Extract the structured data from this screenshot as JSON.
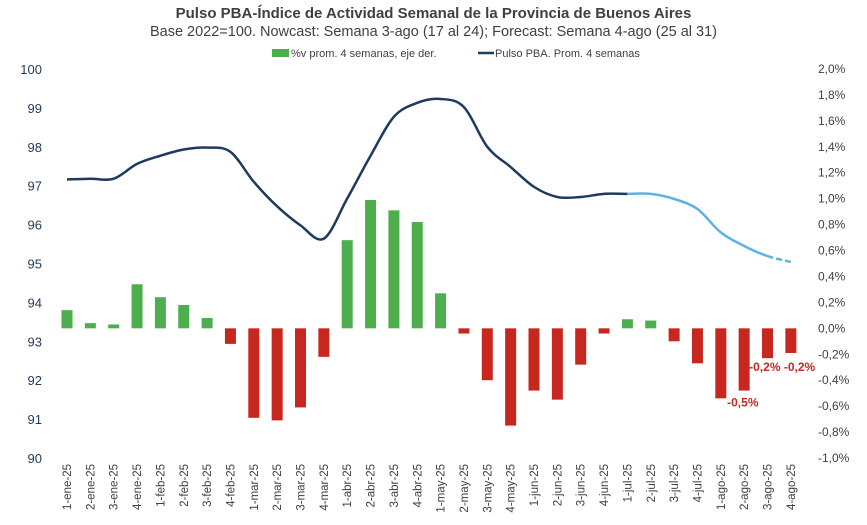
{
  "chart_data": {
    "type": "bar+line",
    "title": "Pulso PBA-Índice de Actividad Semanal de la Provincia de Buenos Aires",
    "subtitle": "Base 2022=100. Nowcast: Semana 3-ago (17 al 24); Forecast: Semana 4-ago (25 al 31)",
    "categories": [
      "1-ene-25",
      "2-ene-25",
      "3-ene-25",
      "4-ene-25",
      "1-feb-25",
      "2-feb-25",
      "3-feb-25",
      "4-feb-25",
      "1-mar-25",
      "2-mar-25",
      "3-mar-25",
      "4-mar-25",
      "1-abr-25",
      "2-abr-25",
      "3-abr-25",
      "4-abr-25",
      "1-may-25",
      "2-may-25",
      "3-may-25",
      "4-may-25",
      "1-jun-25",
      "2-jun-25",
      "3-jun-25",
      "4-jun-25",
      "1-jul-25",
      "2-jul-25",
      "3-jul-25",
      "4-jul-25",
      "1-ago-25",
      "2-ago-25",
      "3-ago-25",
      "4-ago-25"
    ],
    "left_axis": {
      "ylim": [
        90,
        100
      ],
      "ticks": [
        "90",
        "91",
        "92",
        "93",
        "94",
        "95",
        "96",
        "97",
        "98",
        "99",
        "100"
      ]
    },
    "right_axis": {
      "ylim": [
        -1.0,
        2.0
      ],
      "ticks": [
        "-1,0%",
        "-0,8%",
        "-0,6%",
        "-0,4%",
        "-0,2%",
        "0,0%",
        "0,2%",
        "0,4%",
        "0,6%",
        "0,8%",
        "1,0%",
        "1,2%",
        "1,4%",
        "1,6%",
        "1,8%",
        "2,0%"
      ]
    },
    "legend": {
      "placement": "top",
      "entries": [
        "%v prom. 4 semanas, eje der.",
        "Pulso PBA. Prom. 4 semanas"
      ]
    },
    "series": [
      {
        "name": "%v prom. 4 semanas, eje der.",
        "type": "bar",
        "axis": "right",
        "unit": "%",
        "values": [
          0.14,
          0.04,
          0.03,
          0.34,
          0.24,
          0.18,
          0.08,
          -0.12,
          -0.69,
          -0.71,
          -0.61,
          -0.22,
          0.68,
          0.99,
          0.91,
          0.82,
          0.27,
          -0.04,
          -0.4,
          -0.75,
          -0.48,
          -0.55,
          -0.28,
          -0.04,
          0.07,
          0.06,
          -0.1,
          -0.27,
          -0.54,
          -0.48,
          -0.23,
          -0.19
        ],
        "positive_color": "#4eae4e",
        "negative_color": "#c8271f",
        "data_labels": [
          {
            "index": 29,
            "text": "-0,5%"
          },
          {
            "index": 30,
            "text": "-0,2%"
          },
          {
            "index": 31,
            "text": "-0,2%"
          }
        ]
      },
      {
        "name": "Pulso PBA. Prom. 4 semanas",
        "type": "line",
        "axis": "left",
        "values": [
          97.16,
          97.18,
          97.18,
          97.56,
          97.77,
          97.93,
          97.98,
          97.87,
          97.1,
          96.47,
          95.98,
          95.64,
          96.67,
          97.77,
          98.77,
          99.13,
          99.23,
          99.02,
          98.0,
          97.48,
          96.97,
          96.71,
          96.71,
          96.79,
          96.79,
          96.79,
          96.66,
          96.4,
          95.8,
          95.45,
          95.19,
          95.04
        ],
        "color": "#1f3a5f",
        "recent_color": "#5bb3e3",
        "recent_from": "1-jul-25",
        "forecast_from": "3-ago-25"
      }
    ]
  }
}
